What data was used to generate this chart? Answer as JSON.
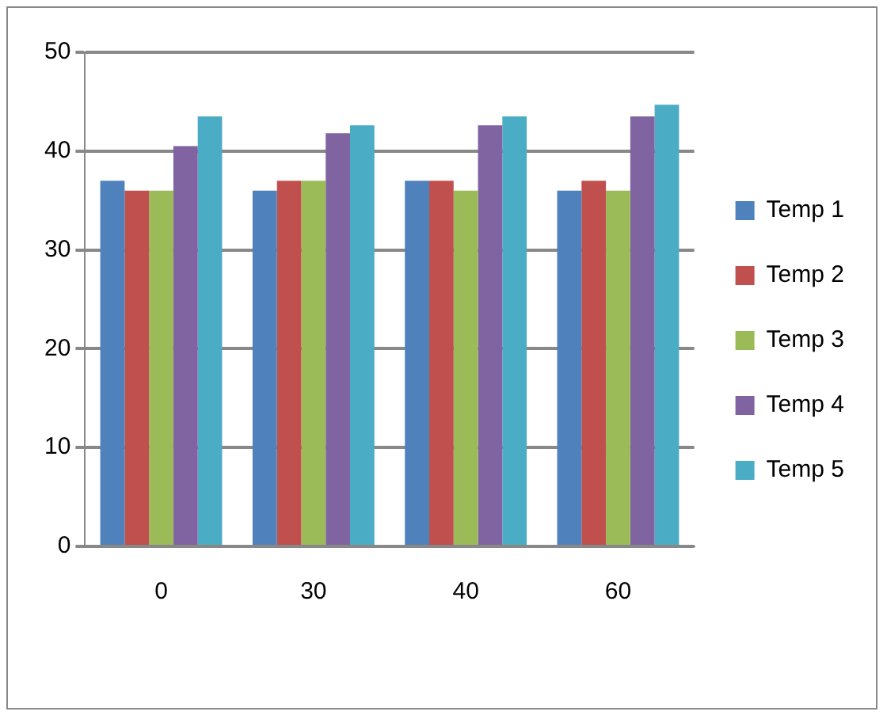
{
  "chart_data": {
    "type": "bar",
    "categories": [
      "0",
      "30",
      "40",
      "60"
    ],
    "series": [
      {
        "name": "Temp 1",
        "color": "#4f81bd",
        "values": [
          37,
          36,
          37,
          36
        ]
      },
      {
        "name": "Temp 2",
        "color": "#c0504d",
        "values": [
          36,
          37,
          37,
          37
        ]
      },
      {
        "name": "Temp 3",
        "color": "#9bbb59",
        "values": [
          36,
          37,
          36,
          36
        ]
      },
      {
        "name": "Temp 4",
        "color": "#8064a2",
        "values": [
          40.5,
          41.8,
          42.6,
          43.5
        ]
      },
      {
        "name": "Temp 5",
        "color": "#4bacc6",
        "values": [
          43.5,
          42.6,
          43.5,
          44.7
        ]
      }
    ],
    "ylim": [
      0,
      50
    ],
    "yticks": [
      0,
      10,
      20,
      30,
      40,
      50
    ],
    "grid": "y",
    "legend": "right"
  }
}
